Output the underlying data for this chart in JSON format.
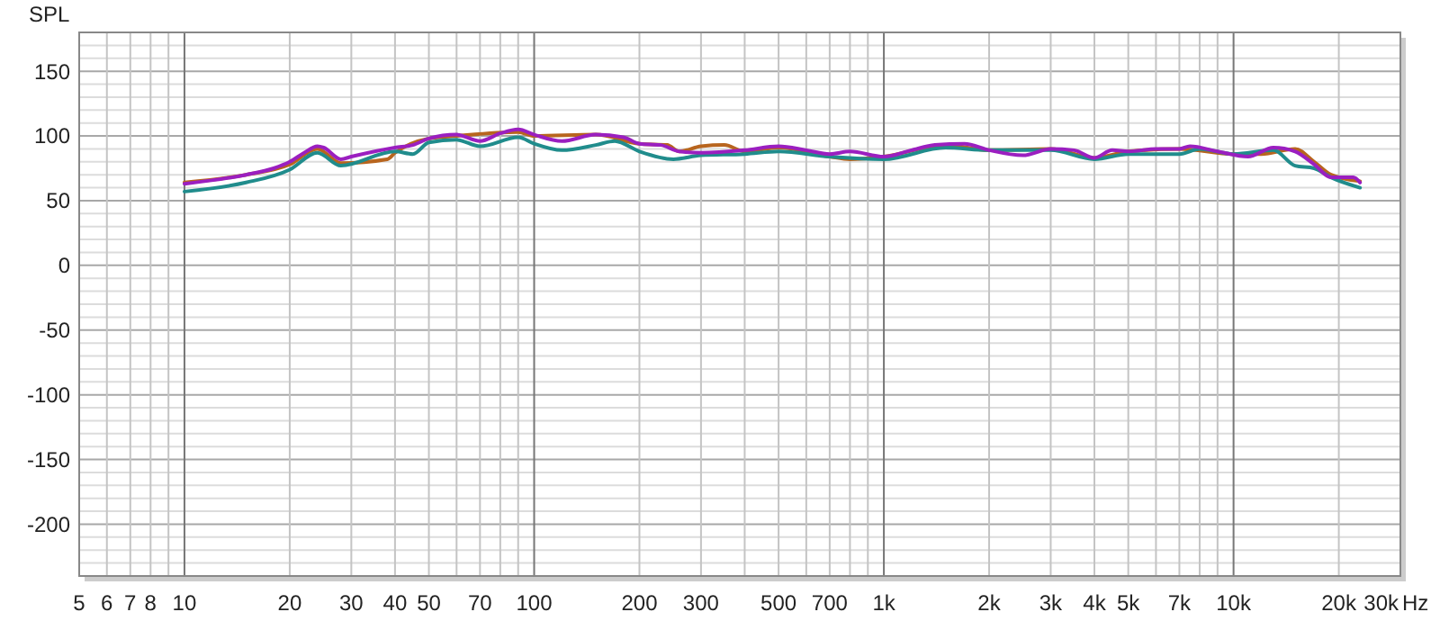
{
  "chart_data": {
    "type": "line",
    "ylabel": "SPL",
    "xlabel": "Hz",
    "log": "x",
    "grid": true,
    "line_style": "solid",
    "marker": "none",
    "xlim": [
      5,
      30000
    ],
    "ylim": [
      -240,
      180
    ],
    "xticks": [
      5,
      6,
      7,
      8,
      {
        "value": 9,
        "label": null
      },
      10,
      20,
      30,
      40,
      50,
      {
        "value": 60,
        "label": null
      },
      70,
      {
        "value": 80,
        "label": null
      },
      {
        "value": 90,
        "label": null
      },
      100,
      200,
      300,
      {
        "value": 400,
        "label": null
      },
      500,
      {
        "value": 600,
        "label": null
      },
      700,
      {
        "value": 800,
        "label": null
      },
      {
        "value": 900,
        "label": null
      },
      {
        "value": 1000,
        "label": "1k"
      },
      {
        "value": 2000,
        "label": "2k"
      },
      {
        "value": 3000,
        "label": "3k"
      },
      {
        "value": 4000,
        "label": "4k"
      },
      {
        "value": 5000,
        "label": "5k"
      },
      {
        "value": 6000,
        "label": null
      },
      {
        "value": 7000,
        "label": "7k"
      },
      {
        "value": 8000,
        "label": null
      },
      {
        "value": 9000,
        "label": null
      },
      {
        "value": 10000,
        "label": "10k"
      },
      {
        "value": 20000,
        "label": "20k"
      },
      {
        "value": 30000,
        "label": "30k"
      }
    ],
    "yticks": [
      {
        "value": 170,
        "label": null
      },
      {
        "value": 160,
        "label": null
      },
      150,
      {
        "value": 140,
        "label": null
      },
      {
        "value": 130,
        "label": null
      },
      {
        "value": 120,
        "label": null
      },
      {
        "value": 110,
        "label": null
      },
      100,
      {
        "value": 90,
        "label": null
      },
      {
        "value": 80,
        "label": null
      },
      {
        "value": 70,
        "label": null
      },
      {
        "value": 60,
        "label": null
      },
      50,
      {
        "value": 40,
        "label": null
      },
      {
        "value": 30,
        "label": null
      },
      {
        "value": 20,
        "label": null
      },
      {
        "value": 10,
        "label": null
      },
      0,
      {
        "value": -10,
        "label": null
      },
      {
        "value": -20,
        "label": null
      },
      {
        "value": -30,
        "label": null
      },
      {
        "value": -40,
        "label": null
      },
      -50,
      {
        "value": -60,
        "label": null
      },
      {
        "value": -70,
        "label": null
      },
      {
        "value": -80,
        "label": null
      },
      {
        "value": -90,
        "label": null
      },
      -100,
      {
        "value": -110,
        "label": null
      },
      {
        "value": -120,
        "label": null
      },
      {
        "value": -130,
        "label": null
      },
      {
        "value": -140,
        "label": null
      },
      -150,
      {
        "value": -160,
        "label": null
      },
      {
        "value": -170,
        "label": null
      },
      {
        "value": -180,
        "label": null
      },
      {
        "value": -190,
        "label": null
      },
      -200,
      {
        "value": -210,
        "label": null
      },
      {
        "value": -220,
        "label": null
      },
      {
        "value": -230,
        "label": null
      }
    ],
    "series": [
      {
        "color": "#b8651e",
        "x": [
          10,
          15,
          20,
          24,
          28,
          38,
          40,
          50,
          60,
          90,
          100,
          150,
          200,
          240,
          260,
          300,
          350,
          400,
          500,
          700,
          800,
          1000,
          1500,
          2000,
          3000,
          4000,
          5000,
          7000,
          10000,
          12000,
          15000,
          17000,
          19000,
          23000
        ],
        "values": [
          64,
          70,
          78,
          90,
          79,
          82,
          87,
          98,
          100,
          103,
          100,
          101,
          94,
          93,
          88,
          92,
          93,
          88,
          91,
          84,
          82,
          84,
          93,
          89,
          90,
          83,
          88,
          90,
          86,
          86,
          90,
          80,
          70,
          65
        ]
      },
      {
        "color": "#208c8c",
        "x": [
          10,
          15,
          20,
          24,
          28,
          40,
          45,
          50,
          60,
          70,
          90,
          100,
          120,
          150,
          170,
          200,
          250,
          300,
          400,
          500,
          700,
          1000,
          1500,
          2000,
          3000,
          4000,
          5000,
          7000,
          8000,
          10000,
          13000,
          15000,
          17000,
          19000,
          23000
        ],
        "values": [
          57,
          64,
          74,
          87,
          77,
          88,
          86,
          95,
          97,
          92,
          99,
          94,
          89,
          93,
          96,
          88,
          82,
          85,
          86,
          88,
          84,
          82,
          91,
          89,
          89,
          82,
          86,
          86,
          90,
          86,
          89,
          77,
          75,
          68,
          60
        ]
      },
      {
        "color": "#9b1fc0",
        "x": [
          10,
          15,
          18,
          20,
          22,
          24,
          25,
          28,
          30,
          40,
          45,
          50,
          60,
          70,
          80,
          90,
          100,
          120,
          150,
          180,
          200,
          230,
          260,
          300,
          400,
          500,
          600,
          700,
          800,
          1000,
          1200,
          1400,
          1700,
          2000,
          2500,
          3000,
          3500,
          4000,
          4500,
          5000,
          6000,
          7000,
          7500,
          9000,
          11000,
          13000,
          15000,
          17000,
          19000,
          22000,
          23000
        ],
        "values": [
          63,
          70,
          75,
          80,
          87,
          92,
          91,
          82,
          84,
          91,
          93,
          98,
          101,
          96,
          102,
          105,
          101,
          96,
          101,
          99,
          94,
          93,
          88,
          87,
          89,
          92,
          89,
          86,
          88,
          84,
          89,
          93,
          94,
          89,
          85,
          90,
          89,
          83,
          89,
          88,
          90,
          90,
          92,
          88,
          84,
          91,
          88,
          78,
          68,
          68,
          64
        ]
      }
    ]
  }
}
